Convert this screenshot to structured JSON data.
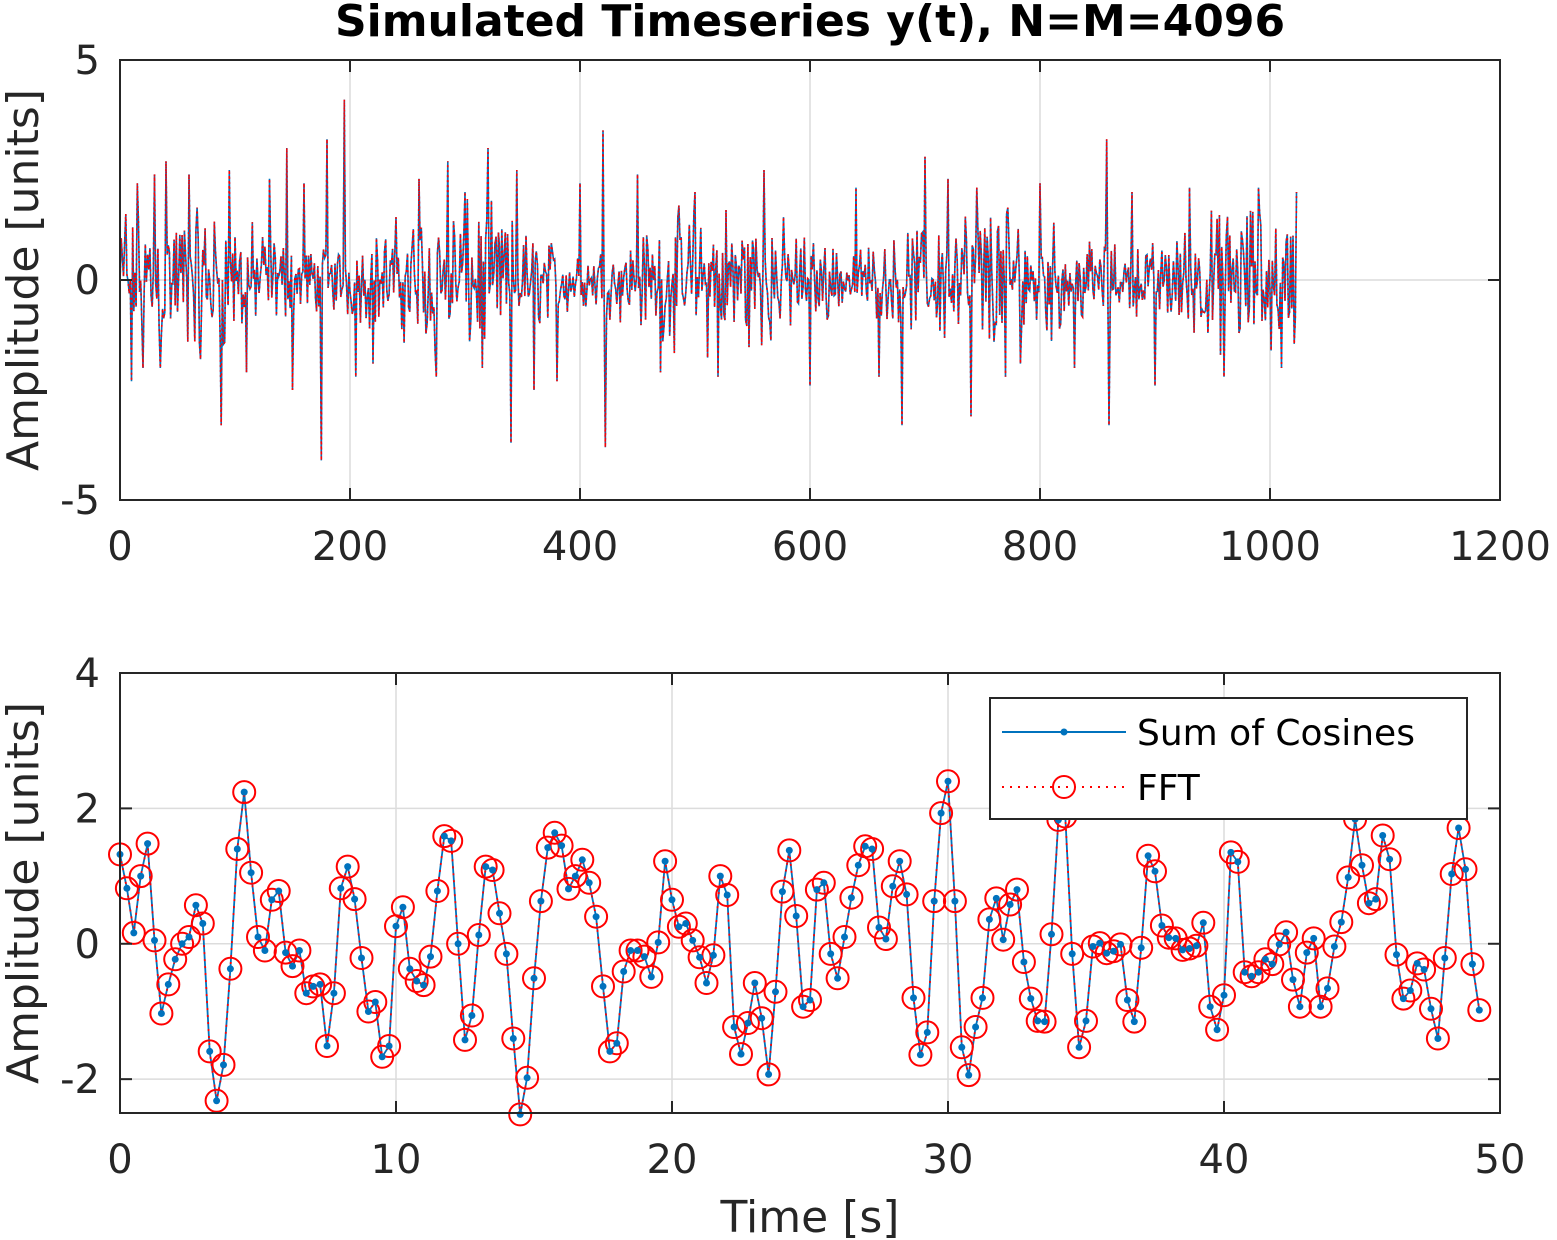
{
  "colors": {
    "line": "#0072BD",
    "fft": "#FF0000",
    "axis": "#262626",
    "grid": "#dcdcdc"
  },
  "chart_data": [
    {
      "type": "line",
      "title": "Simulated Timeseries y(t), N=M=4096",
      "xlabel": "",
      "ylabel": "Amplitude [units]",
      "xlim": [
        0,
        1200
      ],
      "ylim": [
        -5,
        5
      ],
      "xticks": [
        0,
        200,
        400,
        600,
        800,
        1000,
        1200
      ],
      "yticks": [
        -5,
        0,
        5
      ],
      "grid": true,
      "legend": false,
      "series": [
        {
          "style": "solid",
          "color": "#0072BD",
          "spikes": [
            [
              5,
              1.5
            ],
            [
              10,
              -2.3
            ],
            [
              15,
              2.2
            ],
            [
              20,
              -2.0
            ],
            [
              30,
              2.4
            ],
            [
              35,
              -2.0
            ],
            [
              40,
              2.7
            ],
            [
              60,
              2.4
            ],
            [
              70,
              -1.8
            ],
            [
              88,
              -3.3
            ],
            [
              95,
              2.5
            ],
            [
              110,
              -2.1
            ],
            [
              130,
              2.3
            ],
            [
              145,
              3.0
            ],
            [
              150,
              -2.5
            ],
            [
              160,
              2.2
            ],
            [
              175,
              -4.1
            ],
            [
              180,
              3.2
            ],
            [
              195,
              4.1
            ],
            [
              205,
              -2.2
            ],
            [
              220,
              -1.9
            ],
            [
              260,
              2.3
            ],
            [
              275,
              -2.2
            ],
            [
              285,
              2.7
            ],
            [
              300,
              2.0
            ],
            [
              315,
              -2.0
            ],
            [
              320,
              3.0
            ],
            [
              340,
              -3.7
            ],
            [
              345,
              2.5
            ],
            [
              360,
              -2.5
            ],
            [
              380,
              -2.3
            ],
            [
              400,
              2.2
            ],
            [
              420,
              3.4
            ],
            [
              422,
              -3.8
            ],
            [
              450,
              2.4
            ],
            [
              470,
              -2.1
            ],
            [
              500,
              2.0
            ],
            [
              520,
              -2.2
            ],
            [
              560,
              2.5
            ],
            [
              600,
              -2.4
            ],
            [
              640,
              2.1
            ],
            [
              660,
              -2.2
            ],
            [
              680,
              -3.3
            ],
            [
              700,
              2.8
            ],
            [
              720,
              2.3
            ],
            [
              740,
              -3.1
            ],
            [
              745,
              2.1
            ],
            [
              770,
              -2.2
            ],
            [
              800,
              2.2
            ],
            [
              830,
              -2.0
            ],
            [
              858,
              3.2
            ],
            [
              860,
              -3.3
            ],
            [
              880,
              2.0
            ],
            [
              900,
              -2.4
            ],
            [
              930,
              2.1
            ],
            [
              960,
              -2.2
            ],
            [
              990,
              2.1
            ],
            [
              1010,
              -2.0
            ],
            [
              1023,
              2.0
            ]
          ],
          "end_x": 1023
        },
        {
          "style": "dotted",
          "color": "#FF0000"
        }
      ]
    },
    {
      "type": "line",
      "title": "",
      "xlabel": "Time [s]",
      "ylabel": "Amplitude [units]",
      "xlim": [
        0,
        50
      ],
      "ylim": [
        -2.5,
        4
      ],
      "xticks": [
        0,
        10,
        20,
        30,
        40,
        50
      ],
      "yticks": [
        -2,
        0,
        2,
        4
      ],
      "grid": true,
      "legend": {
        "placement": "top-right",
        "entries": [
          "Sum of Cosines",
          "FFT"
        ]
      },
      "x_step": 0.25,
      "series": [
        {
          "name": "Sum of Cosines",
          "color": "#0072BD",
          "marker": "dot",
          "values": [
            1.32,
            0.82,
            0.16,
            1.0,
            1.48,
            0.05,
            -1.03,
            -0.6,
            -0.23,
            0.0,
            0.1,
            0.57,
            0.3,
            -1.59,
            -2.32,
            -1.79,
            -0.37,
            1.4,
            2.24,
            1.05,
            0.1,
            -0.1,
            0.65,
            0.78,
            -0.13,
            -0.33,
            -0.1,
            -0.73,
            -0.63,
            -0.6,
            -1.51,
            -0.73,
            0.82,
            1.14,
            0.66,
            -0.21,
            -1.0,
            -0.86,
            -1.67,
            -1.51,
            0.26,
            0.54,
            -0.37,
            -0.55,
            -0.61,
            -0.19,
            0.78,
            1.59,
            1.52,
            0.0,
            -1.42,
            -1.06,
            0.13,
            1.14,
            1.09,
            0.45,
            -0.15,
            -1.4,
            -2.52,
            -1.98,
            -0.51,
            0.63,
            1.42,
            1.64,
            1.45,
            0.81,
            1.0,
            1.24,
            0.9,
            0.4,
            -0.63,
            -1.59,
            -1.47,
            -0.41,
            -0.1,
            -0.1,
            -0.19,
            -0.49,
            0.02,
            1.22,
            0.65,
            0.25,
            0.3,
            0.05,
            -0.2,
            -0.58,
            -0.17,
            1.0,
            0.72,
            -1.23,
            -1.63,
            -1.17,
            -0.58,
            -1.1,
            -1.93,
            -0.71,
            0.77,
            1.38,
            0.41,
            -0.93,
            -0.83,
            0.8,
            0.9,
            -0.15,
            -0.51,
            0.1,
            0.68,
            1.16,
            1.44,
            1.4,
            0.24,
            0.07,
            0.85,
            1.22,
            0.73,
            -0.8,
            -1.64,
            -1.31,
            0.63,
            1.93,
            2.4,
            0.63,
            -1.53,
            -1.94,
            -1.23,
            -0.8,
            0.36,
            0.67,
            0.06,
            0.58,
            0.8,
            -0.27,
            -0.81,
            -1.14,
            -1.15,
            0.14,
            1.83,
            1.88,
            -0.15,
            -1.53,
            -1.14,
            -0.04,
            0.01,
            -0.14,
            -0.11,
            -0.01,
            -0.83,
            -1.15,
            -0.06,
            1.3,
            1.07,
            0.27,
            0.09,
            0.08,
            -0.09,
            -0.07,
            -0.03,
            0.31,
            -0.93,
            -1.27,
            -0.76,
            1.35,
            1.21,
            -0.42,
            -0.48,
            -0.42,
            -0.23,
            -0.3,
            -0.01,
            0.17,
            -0.53,
            -0.93,
            -0.13,
            0.08,
            -0.93,
            -0.66,
            -0.04,
            0.32,
            0.98,
            1.84,
            1.16,
            0.6,
            0.66,
            1.6,
            1.25,
            -0.16,
            -0.81,
            -0.69,
            -0.29,
            -0.38,
            -0.96,
            -1.4,
            -0.21,
            1.03,
            1.71,
            1.1,
            -0.3,
            -0.98
          ]
        },
        {
          "name": "FFT",
          "color": "#FF0000",
          "marker": "circle",
          "style": "dotted"
        }
      ]
    }
  ]
}
